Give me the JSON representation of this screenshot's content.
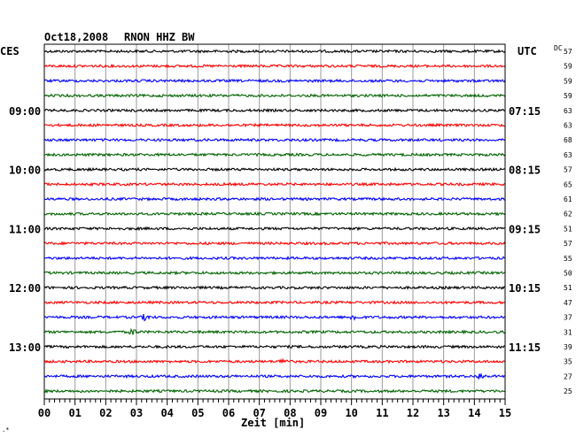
{
  "header": {
    "date": "Oct18,2008",
    "station": "RNON HHZ BW",
    "left_timezone": "CES",
    "right_timezone": "UTC",
    "dc_label": "DC"
  },
  "chart_data": {
    "type": "line",
    "title": "Oct18,2008   RNON HHZ BW",
    "xlabel": "Zeit [min]",
    "xlim": [
      0,
      15
    ],
    "x_ticks": [
      "00",
      "01",
      "02",
      "03",
      "04",
      "05",
      "06",
      "07",
      "08",
      "09",
      "10",
      "11",
      "12",
      "13",
      "14",
      "15"
    ],
    "grid": true,
    "left_hour_labels": [
      {
        "row": 4,
        "label": "09:00"
      },
      {
        "row": 8,
        "label": "10:00"
      },
      {
        "row": 12,
        "label": "11:00"
      },
      {
        "row": 16,
        "label": "12:00"
      },
      {
        "row": 20,
        "label": "13:00"
      }
    ],
    "right_hour_labels": [
      {
        "row": 4,
        "label": "07:15"
      },
      {
        "row": 8,
        "label": "08:15"
      },
      {
        "row": 12,
        "label": "09:15"
      },
      {
        "row": 16,
        "label": "10:15"
      },
      {
        "row": 20,
        "label": "11:15"
      }
    ],
    "trace_colors": [
      "#000000",
      "#ff0000",
      "#0000ff",
      "#006400"
    ],
    "dc_offsets": [
      57,
      59,
      59,
      59,
      63,
      63,
      68,
      63,
      57,
      65,
      61,
      62,
      51,
      57,
      55,
      50,
      51,
      47,
      37,
      31,
      39,
      35,
      27,
      25
    ],
    "events": [
      {
        "row": 18,
        "minute": 3.3
      },
      {
        "row": 18,
        "minute": 10.1
      },
      {
        "row": 19,
        "minute": 2.9
      },
      {
        "row": 21,
        "minute": 7.8
      },
      {
        "row": 22,
        "minute": 14.2
      }
    ]
  }
}
